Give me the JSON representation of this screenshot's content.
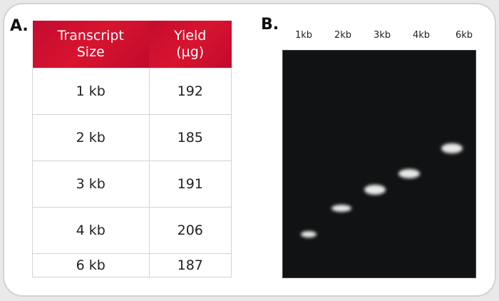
{
  "panel_a": {
    "label": "A.",
    "headers": [
      "Transcript Size",
      "Yield (µg)"
    ],
    "rows": [
      [
        "1 kb",
        "192"
      ],
      [
        "2 kb",
        "185"
      ],
      [
        "3 kb",
        "191"
      ],
      [
        "4 kb",
        "206"
      ],
      [
        "6 kb",
        "187"
      ]
    ]
  },
  "panel_b": {
    "label": "B.",
    "lanes": [
      "1kb",
      "2kb",
      "3kb",
      "4kb",
      "6kb"
    ]
  },
  "colors": {
    "header": "#d0102e",
    "gel": "#111213"
  }
}
